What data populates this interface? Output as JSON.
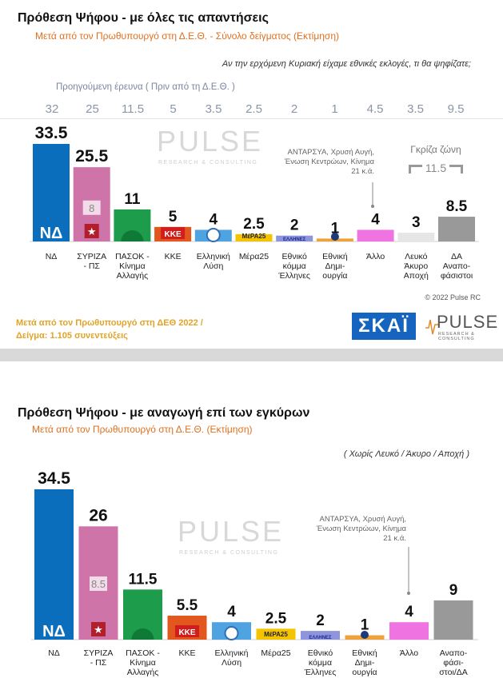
{
  "panel1": {
    "title": "Πρόθεση Ψήφου - με όλες τις απαντήσεις",
    "subtitle": "Μετά από τον Πρωθυπουργό στη Δ.Ε.Θ.  -  Σύνολο δείγματος   (Εκτίμηση)",
    "question": "Αν την ερχόμενη Κυριακή είχαμε εθνικές εκλογές, τι θα ψηφίζατε;",
    "previous_label": "Προηγούμενη έρευνα   ( Πριν από τη Δ.Ε.Θ. )",
    "previous_values": [
      "32",
      "25",
      "11.5",
      "5",
      "3.5",
      "2.5",
      "2",
      "1",
      "4.5",
      "3.5",
      "9.5"
    ],
    "note": "ΑΝΤΑΡΣΥΑ, Χρυσή Αυγή, Ένωση Κεντρώων, Κίνημα 21   κ.ά.",
    "grey_zone_label": "Γκρίζα ζώνη",
    "grey_zone_value": "11.5",
    "inner_label": "8",
    "footer_line1": "Μετά από τον Πρωθυπουργό στη ΔΕΘ  2022  /",
    "footer_line2": "Δείγμα:  1.105 συνεντεύξεις",
    "copyright": "© 2022 Pulse RC",
    "skai": "ΣΚΑΪ",
    "pulse": "PULSE",
    "pulse_sub": "RESEARCH & CONSULTING",
    "chart_data": {
      "type": "bar",
      "categories": [
        [
          "ΝΔ"
        ],
        [
          "ΣΥΡΙΖΑ",
          "- ΠΣ"
        ],
        [
          "ΠΑΣΟΚ -",
          "Κίνημα",
          "Αλλαγής"
        ],
        [
          "ΚΚΕ"
        ],
        [
          "Ελληνική",
          "Λύση"
        ],
        [
          "Μέρα25"
        ],
        [
          "Εθνικό",
          "κόμμα",
          "Έλληνες"
        ],
        [
          "Εθνική",
          "Δημι-",
          "ουργία"
        ],
        [
          "Άλλο"
        ],
        [
          "Λευκό",
          "Άκυρο",
          "Αποχή"
        ],
        [
          "ΔΑ",
          "Αναπο-",
          "φάσιστοι"
        ]
      ],
      "values": [
        33.5,
        25.5,
        11,
        5,
        4,
        2.5,
        2,
        1,
        4,
        3,
        8.5
      ],
      "labels": [
        "33.5",
        "25.5",
        "11",
        "5",
        "4",
        "2.5",
        "2",
        "1",
        "4",
        "3",
        "8.5"
      ],
      "colors": [
        "#0a6ebd",
        "#cf74a8",
        "#1d9c4b",
        "#e2571e",
        "#4fa3e0",
        "#f5c400",
        "#8e95dd",
        "#f0a23a",
        "#ef74e2",
        "#e6e6e6",
        "#999999"
      ],
      "ylim": [
        0,
        33.5
      ]
    }
  },
  "panel2": {
    "title": "Πρόθεση Ψήφου - με αναγωγή επί των εγκύρων",
    "subtitle": "Μετά από τον Πρωθυπουργό στη Δ.Ε.Θ.   (Εκτίμηση)",
    "question": "( Χωρίς Λευκό / Άκυρο / Αποχή )",
    "note": "ΑΝΤΑΡΣΥΑ, Χρυσή Αυγή, Ένωση Κεντρώων, Κίνημα 21   κ.ά.",
    "inner_label": "8.5",
    "pulse": "PULSE",
    "pulse_sub": "RESEARCH & CONSULTING",
    "chart_data": {
      "type": "bar",
      "categories": [
        [
          "ΝΔ"
        ],
        [
          "ΣΥΡΙΖΑ",
          "- ΠΣ"
        ],
        [
          "ΠΑΣΟΚ -",
          "Κίνημα",
          "Αλλαγής"
        ],
        [
          "ΚΚΕ"
        ],
        [
          "Ελληνική",
          "Λύση"
        ],
        [
          "Μέρα25"
        ],
        [
          "Εθνικό",
          "κόμμα",
          "Έλληνες"
        ],
        [
          "Εθνική",
          "Δημι-",
          "ουργία"
        ],
        [
          "Άλλο"
        ],
        [
          "Αναπο-",
          "φάσι-",
          "στοι/ΔΑ"
        ]
      ],
      "values": [
        34.5,
        26,
        11.5,
        5.5,
        4,
        2.5,
        2,
        1,
        4,
        9
      ],
      "labels": [
        "34.5",
        "26",
        "11.5",
        "5.5",
        "4",
        "2.5",
        "2",
        "1",
        "4",
        "9"
      ],
      "colors": [
        "#0a6ebd",
        "#cf74a8",
        "#1d9c4b",
        "#e2571e",
        "#4fa3e0",
        "#f5c400",
        "#8e95dd",
        "#f0a23a",
        "#ef74e2",
        "#999999"
      ],
      "ylim": [
        0,
        34.5
      ]
    }
  }
}
